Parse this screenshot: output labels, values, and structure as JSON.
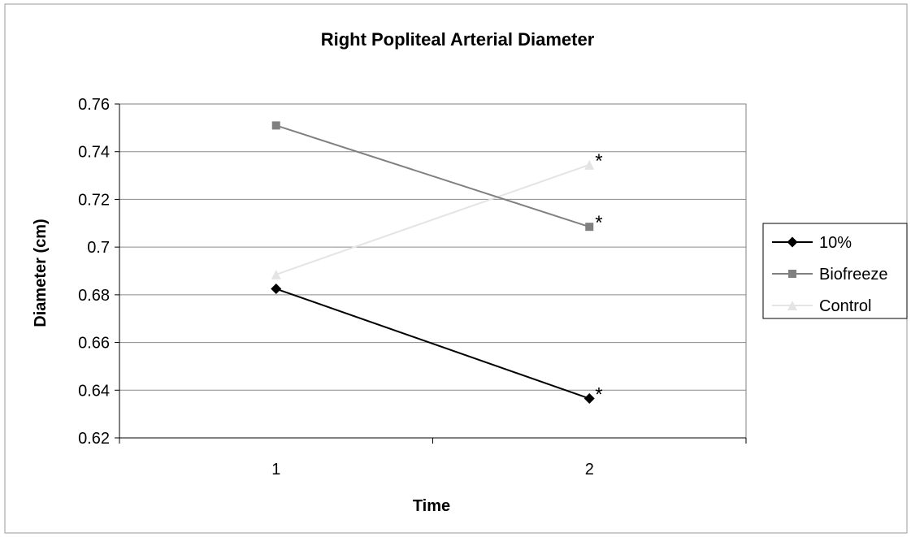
{
  "chart_data": {
    "type": "line",
    "title": "Right Popliteal Arterial Diameter",
    "xlabel": "Time",
    "ylabel": "Diameter (cm)",
    "categories": [
      "1",
      "2"
    ],
    "ylim": [
      0.62,
      0.76
    ],
    "yticks": [
      "0.62",
      "0.64",
      "0.66",
      "0.68",
      "0.7",
      "0.72",
      "0.74",
      "0.76"
    ],
    "grid": true,
    "legend_position": "right",
    "series": [
      {
        "name": "10%",
        "values": [
          0.6825,
          0.6365
        ],
        "color": "#000000",
        "marker": "diamond"
      },
      {
        "name": "Biofreeze",
        "values": [
          0.751,
          0.7085
        ],
        "color": "#808080",
        "marker": "square"
      },
      {
        "name": "Control",
        "values": [
          0.6885,
          0.7345
        ],
        "color": "#e4e4e4",
        "marker": "triangle"
      }
    ],
    "annotations": [
      {
        "text": "*",
        "series": "Control",
        "x": "2"
      },
      {
        "text": "*",
        "series": "Biofreeze",
        "x": "2"
      },
      {
        "text": "*",
        "series": "10%",
        "x": "2"
      }
    ]
  }
}
